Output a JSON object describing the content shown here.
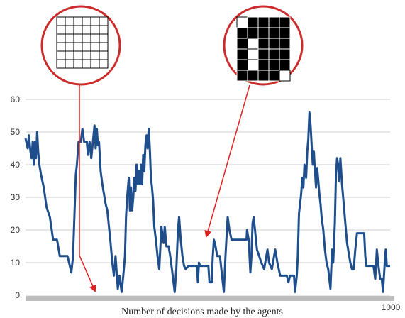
{
  "chart_data": {
    "type": "line",
    "title": "",
    "xlabel": "Number of decisions made by the agents",
    "ylabel": "",
    "xlim": [
      0,
      1000
    ],
    "ylim": [
      0,
      60
    ],
    "x_tick_labels": [
      "1000"
    ],
    "y_ticks": [
      0,
      10,
      20,
      30,
      40,
      50,
      60
    ],
    "grid": true,
    "legend": "none",
    "colors": {
      "line": "#1f4e8c",
      "arrow": "#e02020",
      "inset_border": "#cc2b2b",
      "grid": "#cfcfcf",
      "axis_band": "#bdbdbd"
    },
    "insets": [
      {
        "name": "empty-grid",
        "rows": 6,
        "cols": 6,
        "cells": [
          [
            0,
            0,
            0,
            0,
            0,
            0
          ],
          [
            0,
            0,
            0,
            0,
            0,
            0
          ],
          [
            0,
            0,
            0,
            0,
            0,
            0
          ],
          [
            0,
            0,
            0,
            0,
            0,
            0
          ],
          [
            0,
            0,
            0,
            0,
            0,
            0
          ],
          [
            0,
            0,
            0,
            0,
            0,
            0
          ]
        ]
      },
      {
        "name": "filled-grid",
        "rows": 6,
        "cols": 5,
        "cells": [
          [
            0,
            1,
            1,
            1,
            1
          ],
          [
            1,
            1,
            1,
            1,
            1
          ],
          [
            1,
            0,
            1,
            1,
            1
          ],
          [
            1,
            0,
            1,
            1,
            1
          ],
          [
            1,
            0,
            1,
            1,
            1
          ],
          [
            1,
            1,
            1,
            1,
            0
          ]
        ]
      }
    ],
    "arrows": [
      {
        "from_inset": "empty-grid",
        "to": [
          190,
          0
        ]
      },
      {
        "from_inset": "filled-grid",
        "to": [
          480,
          17
        ]
      }
    ],
    "series": [
      {
        "points": [
          [
            0,
            48
          ],
          [
            4,
            45
          ],
          [
            6,
            49
          ],
          [
            9,
            44
          ],
          [
            11,
            42
          ],
          [
            13,
            47
          ],
          [
            15,
            40
          ],
          [
            17,
            47
          ],
          [
            19,
            42
          ],
          [
            21,
            50
          ],
          [
            23,
            44
          ],
          [
            25,
            40
          ],
          [
            28,
            37
          ],
          [
            33,
            33
          ],
          [
            38,
            27
          ],
          [
            44,
            24
          ],
          [
            50,
            17
          ],
          [
            57,
            17
          ],
          [
            62,
            12
          ],
          [
            76,
            12
          ],
          [
            83,
            7
          ],
          [
            86,
            12
          ],
          [
            91,
            37
          ],
          [
            93,
            40
          ],
          [
            96,
            47
          ],
          [
            100,
            47
          ],
          [
            103,
            51
          ],
          [
            106,
            47
          ],
          [
            111,
            47
          ],
          [
            113,
            43
          ],
          [
            116,
            47
          ],
          [
            119,
            42
          ],
          [
            122,
            47
          ],
          [
            125,
            52
          ],
          [
            127,
            45
          ],
          [
            129,
            51
          ],
          [
            131,
            46
          ],
          [
            133,
            47
          ],
          [
            136,
            38
          ],
          [
            139,
            34
          ],
          [
            142,
            31
          ],
          [
            145,
            28
          ],
          [
            148,
            26
          ],
          [
            151,
            21
          ],
          [
            154,
            16
          ],
          [
            157,
            10
          ],
          [
            160,
            6
          ],
          [
            163,
            12
          ],
          [
            167,
            2
          ],
          [
            170,
            6
          ],
          [
            174,
            1
          ],
          [
            177,
            6
          ],
          [
            180,
            12
          ],
          [
            182,
            24
          ],
          [
            184,
            30
          ],
          [
            187,
            36
          ],
          [
            189,
            26
          ],
          [
            191,
            33
          ],
          [
            193,
            26
          ],
          [
            195,
            30
          ],
          [
            197,
            36
          ],
          [
            199,
            32
          ],
          [
            201,
            40
          ],
          [
            203,
            34
          ],
          [
            205,
            38
          ],
          [
            207,
            34
          ],
          [
            209,
            40
          ],
          [
            211,
            34
          ],
          [
            213,
            43
          ],
          [
            215,
            38
          ],
          [
            217,
            46
          ],
          [
            219,
            49
          ],
          [
            221,
            45
          ],
          [
            223,
            51
          ],
          [
            225,
            45
          ],
          [
            227,
            36
          ],
          [
            229,
            33
          ],
          [
            231,
            29
          ],
          [
            233,
            21
          ],
          [
            236,
            17
          ],
          [
            239,
            12
          ],
          [
            242,
            8
          ],
          [
            246,
            21
          ],
          [
            250,
            16
          ],
          [
            252,
            21
          ],
          [
            255,
            15
          ],
          [
            259,
            15
          ],
          [
            262,
            12
          ],
          [
            265,
            8
          ],
          [
            270,
            1
          ],
          [
            273,
            8
          ],
          [
            276,
            20
          ],
          [
            278,
            24
          ],
          [
            281,
            17
          ],
          [
            284,
            12
          ],
          [
            287,
            9
          ],
          [
            290,
            8
          ],
          [
            295,
            9
          ],
          [
            310,
            9
          ],
          [
            312,
            4
          ],
          [
            314,
            10
          ],
          [
            316,
            9
          ],
          [
            326,
            9
          ],
          [
            331,
            9
          ],
          [
            333,
            4
          ],
          [
            337,
            4
          ],
          [
            339,
            12
          ],
          [
            341,
            17
          ],
          [
            344,
            15
          ],
          [
            347,
            12
          ],
          [
            352,
            12
          ],
          [
            359,
            1
          ],
          [
            362,
            12
          ],
          [
            366,
            24
          ],
          [
            369,
            20
          ],
          [
            373,
            17
          ],
          [
            400,
            17
          ],
          [
            401,
            20
          ],
          [
            404,
            17
          ],
          [
            407,
            7
          ],
          [
            409,
            12
          ],
          [
            411,
            22
          ],
          [
            413,
            24
          ],
          [
            416,
            19
          ],
          [
            419,
            14
          ],
          [
            423,
            12
          ],
          [
            427,
            10
          ],
          [
            432,
            8
          ],
          [
            438,
            14
          ],
          [
            441,
            10
          ],
          [
            446,
            8
          ],
          [
            452,
            14
          ],
          [
            456,
            10
          ],
          [
            461,
            6
          ],
          [
            473,
            6
          ],
          [
            476,
            4
          ],
          [
            479,
            6
          ],
          [
            486,
            6
          ],
          [
            488,
            1
          ],
          [
            491,
            6
          ],
          [
            493,
            12
          ],
          [
            495,
            25
          ],
          [
            497,
            28
          ],
          [
            499,
            31
          ],
          [
            501,
            36
          ],
          [
            503,
            33
          ],
          [
            505,
            40
          ],
          [
            508,
            36
          ],
          [
            510,
            44
          ],
          [
            512,
            48
          ],
          [
            514,
            56
          ],
          [
            516,
            52
          ],
          [
            518,
            46
          ],
          [
            520,
            40
          ],
          [
            522,
            44
          ],
          [
            524,
            38
          ],
          [
            526,
            33
          ],
          [
            528,
            39
          ],
          [
            530,
            35
          ],
          [
            532,
            31
          ],
          [
            534,
            28
          ],
          [
            536,
            24
          ],
          [
            539,
            20
          ],
          [
            542,
            14
          ],
          [
            545,
            10
          ],
          [
            548,
            8
          ],
          [
            552,
            2
          ],
          [
            555,
            14
          ],
          [
            557,
            10
          ],
          [
            560,
            22
          ],
          [
            562,
            37
          ],
          [
            564,
            42
          ],
          [
            566,
            40
          ],
          [
            568,
            35
          ],
          [
            570,
            42
          ],
          [
            573,
            34
          ],
          [
            576,
            28
          ],
          [
            579,
            22
          ],
          [
            582,
            16
          ],
          [
            585,
            13
          ],
          [
            588,
            10
          ],
          [
            591,
            8
          ],
          [
            594,
            8
          ],
          [
            597,
            14
          ],
          [
            600,
            19
          ],
          [
            613,
            19
          ],
          [
            615,
            12
          ],
          [
            617,
            9
          ],
          [
            622,
            9
          ],
          [
            630,
            9
          ],
          [
            633,
            5
          ],
          [
            636,
            14
          ],
          [
            639,
            9
          ],
          [
            642,
            5
          ],
          [
            645,
            5
          ],
          [
            647,
            1
          ],
          [
            650,
            9
          ],
          [
            652,
            14
          ],
          [
            654,
            9
          ],
          [
            660,
            9
          ]
        ]
      }
    ]
  }
}
